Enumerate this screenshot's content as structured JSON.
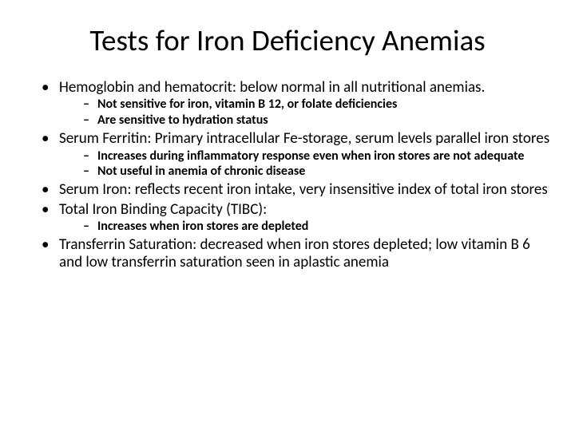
{
  "slide": {
    "title": "Tests for Iron Deficiency Anemias",
    "bullets": [
      {
        "text": "Hemoglobin and hematocrit: below normal in all nutritional anemias.",
        "sub": [
          "Not sensitive for iron, vitamin B 12, or folate deficiencies",
          "Are sensitive to hydration status"
        ]
      },
      {
        "text": "Serum Ferritin: Primary intracellular Fe-storage, serum levels parallel iron stores",
        "sub": [
          "Increases during inflammatory response even when iron stores are not adequate",
          "Not useful in anemia of chronic disease"
        ]
      },
      {
        "text": "Serum Iron: reflects recent iron intake, very insensitive index of total iron stores",
        "sub": []
      },
      {
        "text": "Total Iron Binding Capacity (TIBC):",
        "sub": [
          "Increases when iron stores are depleted"
        ]
      },
      {
        "text": "Transferrin Saturation: decreased when iron stores depleted; low vitamin B 6 and low transferrin saturation seen in aplastic anemia",
        "sub": []
      }
    ]
  },
  "style": {
    "background_color": "#ffffff",
    "text_color": "#000000",
    "title_fontsize": 37,
    "title_fontweight": 400,
    "level1_fontsize": 19,
    "level1_fontweight": 400,
    "level2_fontsize": 16,
    "level2_fontweight": 700,
    "font_family": "Calibri"
  }
}
